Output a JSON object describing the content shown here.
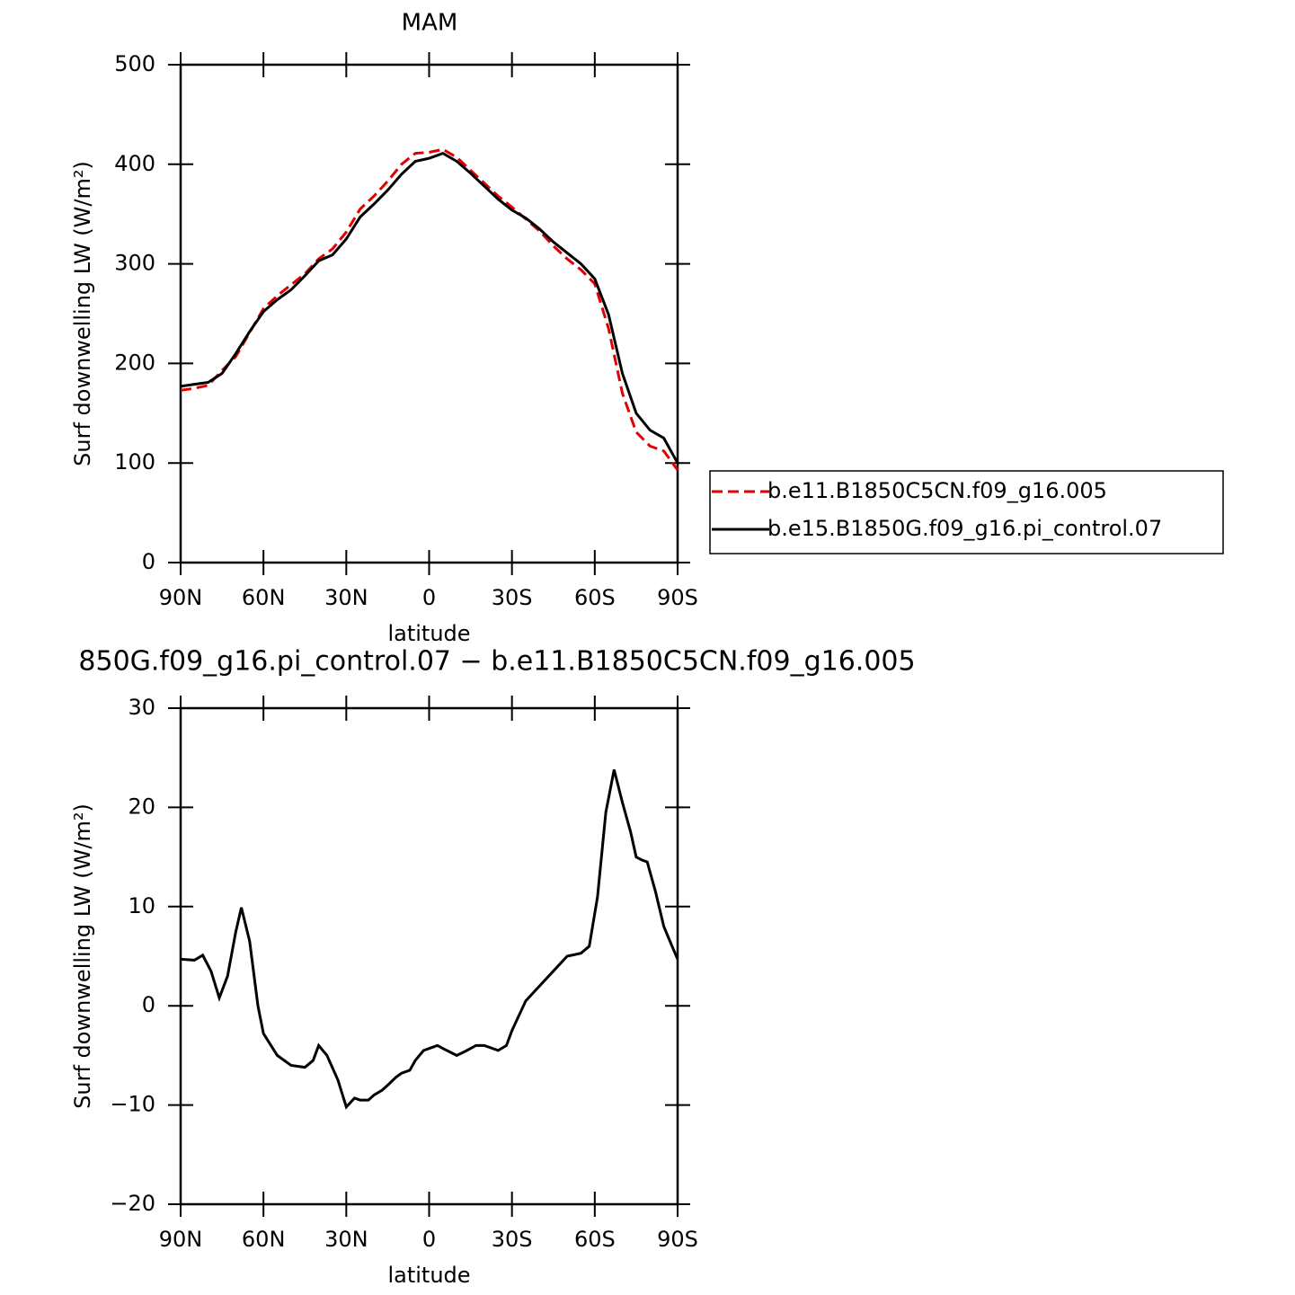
{
  "chart_data": [
    {
      "type": "line",
      "title": "MAM",
      "xlabel": "latitude",
      "ylabel": "Surf downwelling LW (W/m²)",
      "x": [
        90,
        85,
        80,
        75,
        70,
        65,
        60,
        55,
        50,
        45,
        40,
        35,
        30,
        25,
        20,
        15,
        10,
        5,
        0,
        -5,
        -10,
        -15,
        -20,
        -25,
        -30,
        -35,
        -40,
        -45,
        -50,
        -55,
        -60,
        -65,
        -70,
        -75,
        -80,
        -85,
        -90
      ],
      "series": [
        {
          "name": "b.e11.B1850C5CN.f09_g16.005",
          "color": "#e00000",
          "dash": true,
          "values": [
            173,
            175,
            178,
            193,
            207,
            231,
            255,
            268,
            279,
            290,
            305,
            315,
            332,
            355,
            368,
            383,
            400,
            411,
            412,
            415,
            407,
            394,
            381,
            368,
            357,
            345,
            333,
            318,
            305,
            294,
            280,
            235,
            170,
            131,
            117,
            112,
            93
          ]
        },
        {
          "name": "b.e15.B1850G.f09_g16.pi_control.07",
          "color": "#000000",
          "dash": false,
          "values": [
            177,
            179,
            181,
            190,
            210,
            232,
            252,
            264,
            274,
            288,
            303,
            309,
            325,
            347,
            360,
            374,
            390,
            403,
            406,
            411,
            403,
            391,
            378,
            365,
            354,
            346,
            335,
            322,
            311,
            300,
            285,
            249,
            190,
            150,
            133,
            125,
            100
          ]
        }
      ],
      "xlim": [
        90,
        -90
      ],
      "xticks": [
        {
          "value": 90,
          "label": "90N"
        },
        {
          "value": 60,
          "label": "60N"
        },
        {
          "value": 30,
          "label": "30N"
        },
        0,
        {
          "value": -30,
          "label": "30S"
        },
        {
          "value": -60,
          "label": "60S"
        },
        {
          "value": -90,
          "label": "90S"
        }
      ],
      "ylim": [
        0,
        500
      ],
      "yticks": [
        0,
        100,
        200,
        300,
        400,
        500
      ],
      "legend": "right"
    },
    {
      "type": "line",
      "title": "850G.f09_g16.pi_control.07 − b.e11.B1850C5CN.f09_g16.005",
      "xlabel": "latitude",
      "ylabel": "Surf downwelling LW (W/m²)",
      "x": [
        90,
        85,
        82,
        79,
        76,
        73,
        70,
        68,
        65,
        62,
        60,
        55,
        50,
        45,
        42,
        40,
        37,
        33,
        30,
        27,
        25,
        22,
        20,
        17,
        15,
        12,
        10,
        7,
        5,
        2,
        0,
        -3,
        -5,
        -10,
        -13,
        -17,
        -20,
        -25,
        -28,
        -30,
        -35,
        -40,
        -45,
        -50,
        -55,
        -58,
        -61,
        -64,
        -67,
        -70,
        -73,
        -75,
        -77,
        -79,
        -82,
        -85,
        -88,
        -90
      ],
      "series": [
        {
          "color": "#000000",
          "dash": false,
          "values": [
            4.7,
            4.6,
            5.1,
            3.5,
            0.8,
            3.0,
            7.5,
            9.9,
            6.5,
            0,
            -2.8,
            -5.0,
            -6.0,
            -6.2,
            -5.5,
            -4.0,
            -5.0,
            -7.5,
            -10.2,
            -9.3,
            -9.5,
            -9.5,
            -9.0,
            -8.5,
            -8.0,
            -7.2,
            -6.8,
            -6.5,
            -5.5,
            -4.5,
            -4.3,
            -4.0,
            -4.3,
            -5.0,
            -4.6,
            -4.0,
            -4.0,
            -4.5,
            -4.0,
            -2.5,
            0.5,
            2.0,
            3.5,
            5.0,
            5.3,
            6.0,
            11.0,
            19.5,
            23.8,
            20.5,
            17.5,
            15.0,
            14.7,
            14.5,
            11.5,
            8.0,
            6.0,
            4.7
          ]
        }
      ],
      "xlim": [
        90,
        -90
      ],
      "xticks": [
        {
          "value": 90,
          "label": "90N"
        },
        {
          "value": 60,
          "label": "60N"
        },
        {
          "value": 30,
          "label": "30N"
        },
        0,
        {
          "value": -30,
          "label": "30S"
        },
        {
          "value": -60,
          "label": "60S"
        },
        {
          "value": -90,
          "label": "90S"
        }
      ],
      "ylim": [
        -20,
        30
      ],
      "yticks": [
        {
          "value": -20,
          "label": "−20"
        },
        {
          "value": -10,
          "label": "−10"
        },
        0,
        10,
        20,
        30
      ]
    }
  ]
}
